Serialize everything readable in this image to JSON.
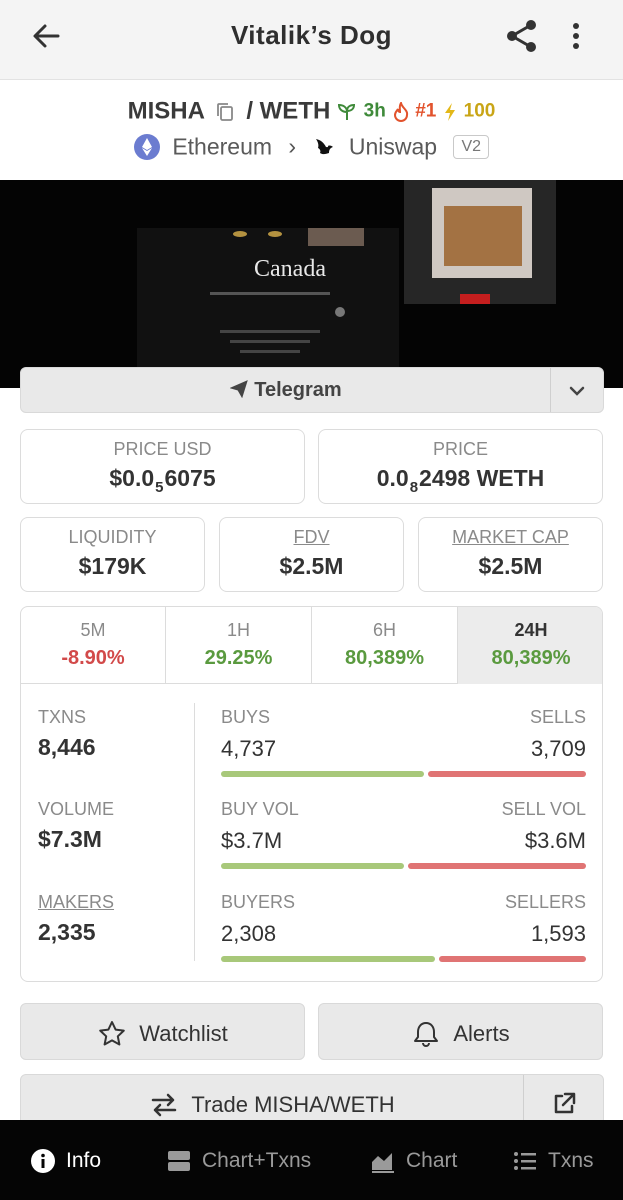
{
  "header": {
    "title": "Vitalik’s Dog"
  },
  "pair": {
    "base": "MISHA",
    "separator": "/",
    "quote": "WETH",
    "age": "3h",
    "rank": "#1",
    "boost": "100"
  },
  "chain": {
    "network": "Ethereum",
    "dex": "Uniswap",
    "version": "V2"
  },
  "banner": {
    "text": "Canada"
  },
  "links": {
    "telegram_label": "Telegram"
  },
  "prices": {
    "price_usd_label": "PRICE USD",
    "price_usd_prefix": "$0.0",
    "price_usd_sub": "5",
    "price_usd_digits": "6075",
    "price_label": "PRICE",
    "price_prefix": "0.0",
    "price_sub": "8",
    "price_digits": "2498 WETH"
  },
  "metrics": {
    "liquidity_label": "LIQUIDITY",
    "liquidity": "$179K",
    "fdv_label": "FDV",
    "fdv": "$2.5M",
    "mcap_label": "MARKET CAP",
    "mcap": "$2.5M"
  },
  "timeframes": [
    {
      "label": "5M",
      "change": "-8.90%"
    },
    {
      "label": "1H",
      "change": "29.25%"
    },
    {
      "label": "6H",
      "change": "80,389%"
    },
    {
      "label": "24H",
      "change": "80,389%"
    }
  ],
  "stats": {
    "txns_label": "TXNS",
    "txns": "8,446",
    "volume_label": "VOLUME",
    "volume": "$7.3M",
    "makers_label": "MAKERS",
    "makers": "2,335",
    "buys_label": "BUYS",
    "buys": "4,737",
    "sells_label": "SELLS",
    "sells": "3,709",
    "buy_vol_label": "BUY VOL",
    "buy_vol": "$3.7M",
    "sell_vol_label": "SELL VOL",
    "sell_vol": "$3.6M",
    "buyers_label": "BUYERS",
    "buyers": "2,308",
    "sellers_label": "SELLERS",
    "sellers": "1,593",
    "buys_share": 0.561,
    "buy_vol_share": 0.507,
    "buyers_share": 0.592
  },
  "actions": {
    "watchlist": "Watchlist",
    "alerts": "Alerts",
    "trade": "Trade MISHA/WETH"
  },
  "nav": {
    "info": "Info",
    "chart_txns": "Chart+Txns",
    "chart": "Chart",
    "txns": "Txns"
  },
  "colors": {
    "positive": "#5a9a3f",
    "negative": "#d24a4a",
    "buy_bar": "#a8c87a",
    "sell_bar": "#e07474"
  }
}
